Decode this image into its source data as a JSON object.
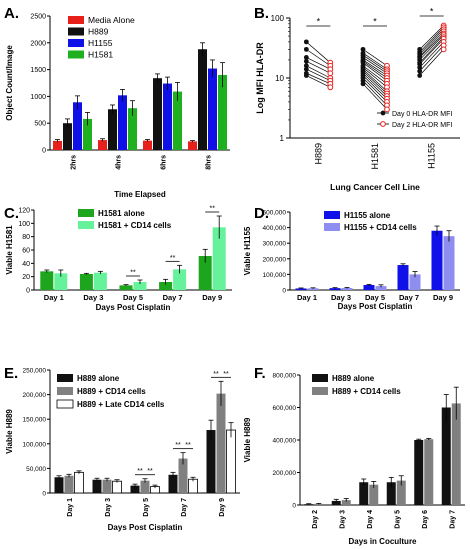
{
  "colors": {
    "red": "#e8201b",
    "black": "#111111",
    "blue": "#1010e8",
    "green": "#1fb01f",
    "dark_green": "#1ea51e",
    "light_green": "#66f29a",
    "light_blue": "#8e8ef0",
    "gray": "#808080",
    "white": "#ffffff"
  },
  "chart_data": [
    {
      "panel": "A.",
      "type": "bar",
      "categories": [
        "2hrs",
        "4hrs",
        "6hrs",
        "8hrs"
      ],
      "series": [
        {
          "name": "Media Alone",
          "color": "red",
          "values": [
            170,
            185,
            175,
            160
          ],
          "errors": [
            25,
            25,
            20,
            15
          ]
        },
        {
          "name": "H889",
          "color": "black",
          "values": [
            500,
            760,
            1340,
            1880
          ],
          "errors": [
            80,
            80,
            80,
            120
          ]
        },
        {
          "name": "H1155",
          "color": "blue",
          "values": [
            890,
            1020,
            1240,
            1520
          ],
          "errors": [
            120,
            110,
            120,
            160
          ]
        },
        {
          "name": "H1581",
          "color": "green",
          "values": [
            580,
            780,
            1090,
            1400
          ],
          "errors": [
            120,
            140,
            170,
            230
          ]
        }
      ],
      "xlabel": "Time  Elapsed",
      "ylabel": "Object Count/Image",
      "ylim": [
        0,
        2500
      ],
      "yticks": [
        "0",
        "500",
        "1000",
        "1500",
        "2000",
        "2500"
      ],
      "legend": "top-left"
    },
    {
      "panel": "B.",
      "type": "scatter",
      "categories": [
        "H889",
        "H1581",
        "H1155"
      ],
      "xlabel": "Lung Cancer Cell Line",
      "ylabel": "Log MFI HLA-DR",
      "yscale": "log",
      "ylim": [
        1,
        100
      ],
      "yticks": [
        "1",
        "10",
        "100"
      ],
      "significance": [
        "*",
        "*",
        "*"
      ],
      "series": [
        {
          "name": "Day 0 HLA-DR MFI",
          "marker": "filled-circle",
          "color": "black"
        },
        {
          "name": "Day 2 HLA-DR MFI",
          "marker": "open-circle",
          "color": "red"
        }
      ],
      "pairs": [
        {
          "category": "H889",
          "day0": [
            40,
            30,
            22,
            19,
            16,
            14,
            12,
            11
          ],
          "day2": [
            18,
            16,
            14,
            12,
            10,
            9,
            8,
            7
          ]
        },
        {
          "category": "H1581",
          "day0": [
            30,
            26,
            24,
            22,
            20,
            19,
            18,
            16,
            15,
            14,
            13,
            12,
            11,
            10,
            9,
            8
          ],
          "day2": [
            16,
            14,
            13,
            12,
            11,
            10,
            9,
            8,
            7,
            6,
            5.5,
            5,
            4.5,
            4,
            3.5,
            3
          ]
        },
        {
          "category": "H1155",
          "day0": [
            30,
            27,
            25,
            23,
            22,
            20,
            18,
            17,
            15,
            13,
            11
          ],
          "day2": [
            75,
            70,
            65,
            60,
            55,
            52,
            48,
            45,
            40,
            35,
            30
          ]
        }
      ],
      "legend": "bottom-right"
    },
    {
      "panel": "C.",
      "type": "bar",
      "categories": [
        "Day 1",
        "Day 3",
        "Day 5",
        "Day 7",
        "Day 9"
      ],
      "series": [
        {
          "name": "H1581 alone",
          "color": "dark_green",
          "values": [
            28,
            24,
            7,
            12,
            51
          ],
          "errors": [
            2,
            1,
            1,
            4,
            10
          ]
        },
        {
          "name": "H1581 + CD14 cells",
          "color": "light_green",
          "values": [
            25,
            26,
            12,
            31,
            94
          ],
          "errors": [
            5,
            2,
            3,
            6,
            17
          ]
        }
      ],
      "significance": [
        "",
        "",
        "**",
        "**",
        "**"
      ],
      "xlabel": "Days Post Cisplatin",
      "ylabel": "Viable H1581",
      "ylim": [
        0,
        120
      ],
      "yticks": [
        "0",
        "20",
        "40",
        "60",
        "80",
        "100",
        "120"
      ],
      "legend": "top-left"
    },
    {
      "panel": "D.",
      "type": "bar",
      "categories": [
        "Day 1",
        "Day 3",
        "Day 5",
        "Day 7",
        "Day 9"
      ],
      "series": [
        {
          "name": "H1155 alone",
          "color": "blue",
          "values": [
            10000,
            12000,
            32000,
            160000,
            380000
          ],
          "errors": [
            3000,
            3000,
            4000,
            8000,
            30000
          ]
        },
        {
          "name": "H1155 + CD14 cells",
          "color": "light_blue",
          "values": [
            11000,
            13000,
            25000,
            100000,
            345000
          ],
          "errors": [
            3000,
            3000,
            8000,
            18000,
            35000
          ]
        }
      ],
      "xlabel": "Days Post Cisplatin",
      "ylabel": "Viable H1155",
      "ylim": [
        0,
        500000
      ],
      "yticks": [
        "0",
        "100,000",
        "200,000",
        "300,000",
        "400,000",
        "500,000"
      ],
      "legend": "top-left"
    },
    {
      "panel": "E.",
      "type": "bar",
      "categories": [
        "Day 1",
        "Day 3",
        "Day 5",
        "Day 7",
        "Day 9"
      ],
      "series": [
        {
          "name": "H889 alone",
          "color": "black",
          "values": [
            32000,
            27000,
            15000,
            37000,
            128000
          ],
          "errors": [
            3000,
            3000,
            3000,
            5000,
            20000
          ]
        },
        {
          "name": "H889 + CD14 cells",
          "color": "gray",
          "values": [
            35000,
            27000,
            25000,
            70000,
            202000
          ],
          "errors": [
            3000,
            3000,
            4000,
            12000,
            25000
          ]
        },
        {
          "name": "H889 + Late CD14 cells",
          "color": "white",
          "values": [
            42000,
            24000,
            13000,
            28000,
            128000
          ],
          "errors": [
            3000,
            3000,
            3000,
            4000,
            15000
          ]
        }
      ],
      "significance_pairs": [
        {
          "category": "Day 5",
          "labels": [
            "**",
            "**"
          ]
        },
        {
          "category": "Day 7",
          "labels": [
            "**",
            "**"
          ]
        },
        {
          "category": "Day 9",
          "labels": [
            "**",
            "**"
          ]
        }
      ],
      "xlabel": "Days Post Cisplatin",
      "ylabel": "Viable H889",
      "ylim": [
        0,
        250000
      ],
      "yticks": [
        "0",
        "50,000",
        "100,000",
        "150,000",
        "200,000",
        "250,000"
      ],
      "legend": "top-left"
    },
    {
      "panel": "F.",
      "type": "bar",
      "categories": [
        "Day 2",
        "Day 3",
        "Day 4",
        "Day 5",
        "Day 6",
        "Day 7"
      ],
      "series": [
        {
          "name": "H889 alone",
          "color": "black",
          "values": [
            5000,
            25000,
            140000,
            140000,
            400000,
            600000
          ],
          "errors": [
            3000,
            10000,
            20000,
            30000,
            5000,
            80000
          ]
        },
        {
          "name": "H889 + CD14 cells",
          "color": "gray",
          "values": [
            7000,
            30000,
            125000,
            150000,
            405000,
            625000
          ],
          "errors": [
            3000,
            10000,
            20000,
            30000,
            5000,
            100000
          ]
        }
      ],
      "xlabel": "Days in  Coculture",
      "ylabel": "Viable H889",
      "ylim": [
        0,
        800000
      ],
      "yticks": [
        "0",
        "200,000",
        "400,000",
        "600,000",
        "800,000"
      ],
      "legend": "top-left"
    }
  ]
}
